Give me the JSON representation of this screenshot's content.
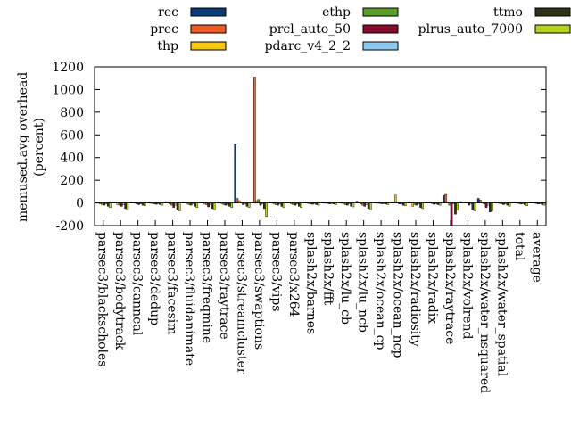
{
  "chart_data": {
    "type": "bar",
    "ylabel_lines": [
      "memused.avg overhead",
      "(percent)"
    ],
    "ylim": [
      -200,
      1200
    ],
    "yticks": [
      -200,
      0,
      200,
      400,
      600,
      800,
      1000,
      1200
    ],
    "legend_position": "top",
    "grid": false,
    "categories": [
      "parsec3/blackscholes",
      "parsec3/bodytrack",
      "parsec3/canneal",
      "parsec3/dedup",
      "parsec3/facesim",
      "parsec3/fluidanimate",
      "parsec3/freqmine",
      "parsec3/raytrace",
      "parsec3/streamcluster",
      "parsec3/swaptions",
      "parsec3/vips",
      "parsec3/x264",
      "splash2x/barnes",
      "splash2x/fft",
      "splash2x/lu_cb",
      "splash2x/lu_ncb",
      "splash2x/ocean_cp",
      "splash2x/ocean_ncp",
      "splash2x/radiosity",
      "splash2x/radix",
      "splash2x/raytrace",
      "splash2x/volrend",
      "splash2x/water_nsquared",
      "splash2x/water_spatial",
      "total",
      "average"
    ],
    "series": [
      {
        "name": "rec",
        "color": "#0b3c7a",
        "values": [
          5,
          8,
          5,
          3,
          12,
          5,
          5,
          10,
          520,
          10,
          5,
          5,
          3,
          3,
          3,
          15,
          3,
          5,
          5,
          5,
          65,
          12,
          40,
          5,
          5,
          5
        ]
      },
      {
        "name": "prec",
        "color": "#f05a23",
        "values": [
          3,
          6,
          3,
          2,
          8,
          3,
          3,
          5,
          40,
          1110,
          3,
          3,
          2,
          2,
          2,
          10,
          2,
          3,
          3,
          3,
          75,
          8,
          25,
          3,
          3,
          3
        ]
      },
      {
        "name": "thp",
        "color": "#f5c518",
        "values": [
          -10,
          -15,
          2,
          -5,
          -10,
          -5,
          -10,
          -5,
          20,
          20,
          -10,
          -10,
          -5,
          2,
          -5,
          -10,
          2,
          70,
          -30,
          5,
          5,
          5,
          5,
          -5,
          2,
          2
        ]
      },
      {
        "name": "ethp",
        "color": "#5a9e2a",
        "values": [
          -15,
          -20,
          -10,
          -10,
          -20,
          -15,
          -15,
          -15,
          10,
          30,
          -15,
          -15,
          -10,
          -5,
          -15,
          -20,
          -5,
          10,
          -15,
          -5,
          -20,
          5,
          -10,
          -10,
          -5,
          -5
        ]
      },
      {
        "name": "prcl_auto_50",
        "color": "#8b0a2b",
        "values": [
          -20,
          -30,
          -15,
          -12,
          -40,
          -20,
          -35,
          -20,
          -15,
          -20,
          -20,
          -20,
          -12,
          -8,
          -20,
          -30,
          -8,
          -10,
          -20,
          -12,
          -200,
          -20,
          -40,
          -15,
          -10,
          -10
        ]
      },
      {
        "name": "pdarc_v4_2_2",
        "color": "#8ec9f0",
        "values": [
          -10,
          -15,
          -8,
          -8,
          -20,
          -10,
          -15,
          -10,
          -10,
          -10,
          -10,
          -10,
          -8,
          -5,
          -10,
          -15,
          -5,
          -8,
          -10,
          -8,
          -10,
          -10,
          -20,
          -8,
          -8,
          -8
        ]
      },
      {
        "name": "ttmo",
        "color": "#2e3318",
        "values": [
          -30,
          -50,
          -20,
          -15,
          -60,
          -30,
          -50,
          -30,
          -30,
          -50,
          -30,
          -30,
          -15,
          -10,
          -30,
          -50,
          -10,
          -20,
          -40,
          -15,
          -100,
          -60,
          -80,
          -20,
          -15,
          -15
        ]
      },
      {
        "name": "plrus_auto_7000",
        "color": "#b5d31a",
        "values": [
          -40,
          -60,
          -25,
          -20,
          -70,
          -40,
          -60,
          -40,
          -40,
          -120,
          -40,
          -40,
          -20,
          -15,
          -35,
          -60,
          -15,
          -25,
          -50,
          -20,
          -60,
          -70,
          -70,
          -30,
          -25,
          -20
        ]
      }
    ]
  }
}
